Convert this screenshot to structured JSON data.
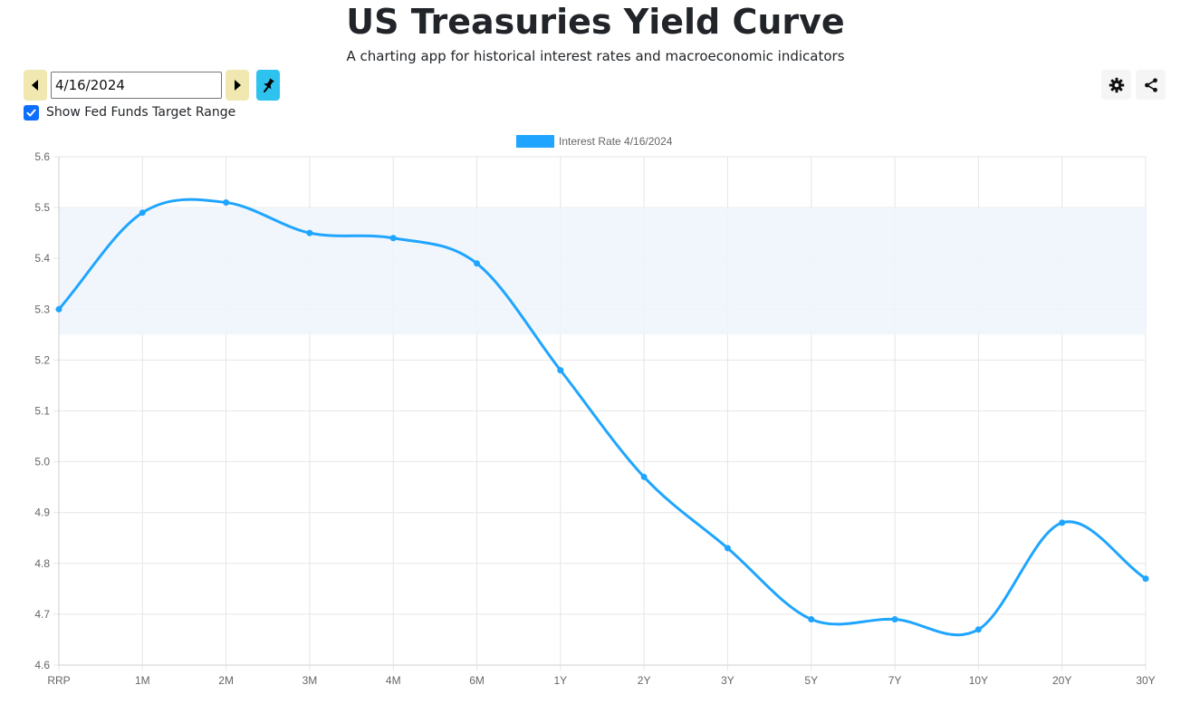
{
  "header": {
    "title": "US Treasuries Yield Curve",
    "subtitle": "A charting app for historical interest rates and macroeconomic indicators"
  },
  "controls": {
    "date_value": "4/16/2024",
    "prev_icon": "caret-left-icon",
    "next_icon": "caret-right-icon",
    "pin_icon": "pin-icon",
    "show_fed_funds_checked": true,
    "show_fed_funds_label": "Show Fed Funds Target Range"
  },
  "toolbar": {
    "settings_icon": "gear-icon",
    "share_icon": "share-icon"
  },
  "colors": {
    "line": "#1fa5ff",
    "fed_band": "#eef5fd",
    "nav_button": "#f0e8b0",
    "pin_button": "#2ec3ee",
    "checkbox": "#0d6efd",
    "grid": "#e6e6e6"
  },
  "chart_data": {
    "type": "line",
    "categories": [
      "RRP",
      "1M",
      "2M",
      "3M",
      "4M",
      "6M",
      "1Y",
      "2Y",
      "3Y",
      "5Y",
      "7Y",
      "10Y",
      "20Y",
      "30Y"
    ],
    "series": [
      {
        "name": "Interest Rate 4/16/2024",
        "values": [
          5.3,
          5.49,
          5.51,
          5.45,
          5.44,
          5.39,
          5.18,
          4.97,
          4.83,
          4.69,
          4.69,
          4.67,
          4.88,
          4.77
        ]
      }
    ],
    "fed_funds_target_range": [
      5.25,
      5.5
    ],
    "ylim": [
      4.6,
      5.6
    ],
    "yticks": [
      "5.6",
      "5.5",
      "5.4",
      "5.3",
      "5.2",
      "5.1",
      "5.0",
      "4.9",
      "4.8",
      "4.7",
      "4.6"
    ],
    "grid": true,
    "legend_position": "top-center",
    "curve": "smooth"
  }
}
